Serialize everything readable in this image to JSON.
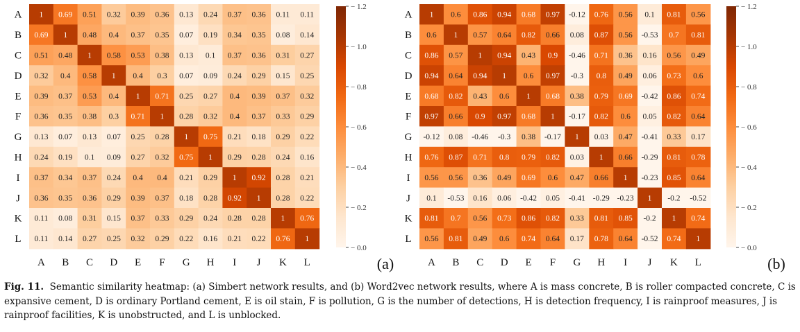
{
  "labels": [
    "A",
    "B",
    "C",
    "D",
    "E",
    "F",
    "G",
    "H",
    "I",
    "J",
    "K",
    "L"
  ],
  "chart_data": [
    {
      "type": "heatmap",
      "panel_label": "(a)",
      "rows": [
        "A",
        "B",
        "C",
        "D",
        "E",
        "F",
        "G",
        "H",
        "I",
        "J",
        "K",
        "L"
      ],
      "columns": [
        "A",
        "B",
        "C",
        "D",
        "E",
        "F",
        "G",
        "H",
        "I",
        "J",
        "K",
        "L"
      ],
      "values": [
        [
          1,
          0.69,
          0.51,
          0.32,
          0.39,
          0.36,
          0.13,
          0.24,
          0.37,
          0.36,
          0.11,
          0.11
        ],
        [
          0.69,
          1,
          0.48,
          0.4,
          0.37,
          0.35,
          0.07,
          0.19,
          0.34,
          0.35,
          0.08,
          0.14
        ],
        [
          0.51,
          0.48,
          1,
          0.58,
          0.53,
          0.38,
          0.13,
          0.1,
          0.37,
          0.36,
          0.31,
          0.27
        ],
        [
          0.32,
          0.4,
          0.58,
          1,
          0.4,
          0.3,
          0.07,
          0.09,
          0.24,
          0.29,
          0.15,
          0.25
        ],
        [
          0.39,
          0.37,
          0.53,
          0.4,
          1,
          0.71,
          0.25,
          0.27,
          0.4,
          0.39,
          0.37,
          0.32
        ],
        [
          0.36,
          0.35,
          0.38,
          0.3,
          0.71,
          1,
          0.28,
          0.32,
          0.4,
          0.37,
          0.33,
          0.29
        ],
        [
          0.13,
          0.07,
          0.13,
          0.07,
          0.25,
          0.28,
          1,
          0.75,
          0.21,
          0.18,
          0.29,
          0.22
        ],
        [
          0.24,
          0.19,
          0.1,
          0.09,
          0.27,
          0.32,
          0.75,
          1,
          0.29,
          0.28,
          0.24,
          0.16
        ],
        [
          0.37,
          0.34,
          0.37,
          0.24,
          0.4,
          0.4,
          0.21,
          0.29,
          1,
          0.92,
          0.28,
          0.21
        ],
        [
          0.36,
          0.35,
          0.36,
          0.29,
          0.39,
          0.37,
          0.18,
          0.28,
          0.92,
          1,
          0.28,
          0.22
        ],
        [
          0.11,
          0.08,
          0.31,
          0.15,
          0.37,
          0.33,
          0.29,
          0.24,
          0.28,
          0.28,
          1,
          0.76
        ],
        [
          0.11,
          0.14,
          0.27,
          0.25,
          0.32,
          0.29,
          0.22,
          0.16,
          0.21,
          0.22,
          0.76,
          1
        ]
      ],
      "colorbar": {
        "min": 0,
        "max": 1.2,
        "ticks": [
          "0.0",
          "0.2",
          "0.4",
          "0.6",
          "0.8",
          "1.0",
          "1.2"
        ]
      }
    },
    {
      "type": "heatmap",
      "panel_label": "(b)",
      "rows": [
        "A",
        "B",
        "C",
        "D",
        "E",
        "F",
        "G",
        "H",
        "I",
        "J",
        "K",
        "L"
      ],
      "columns": [
        "A",
        "B",
        "C",
        "D",
        "E",
        "F",
        "G",
        "H",
        "I",
        "J",
        "K",
        "L"
      ],
      "values": [
        [
          1,
          0.6,
          0.86,
          0.94,
          0.68,
          0.97,
          -0.12,
          0.76,
          0.56,
          0.1,
          0.81,
          0.56
        ],
        [
          0.6,
          1,
          0.57,
          0.64,
          0.82,
          0.66,
          0.08,
          0.87,
          0.56,
          -0.53,
          0.7,
          0.81
        ],
        [
          0.86,
          0.57,
          1,
          0.94,
          0.43,
          0.9,
          -0.46,
          0.71,
          0.36,
          0.16,
          0.56,
          0.49
        ],
        [
          0.94,
          0.64,
          0.94,
          1,
          0.6,
          0.97,
          -0.3,
          0.8,
          0.49,
          0.06,
          0.73,
          0.6
        ],
        [
          0.68,
          0.82,
          0.43,
          0.6,
          1,
          0.68,
          0.38,
          0.79,
          0.69,
          -0.42,
          0.86,
          0.74
        ],
        [
          0.97,
          0.66,
          0.9,
          0.97,
          0.68,
          1,
          -0.17,
          0.82,
          0.6,
          0.05,
          0.82,
          0.64
        ],
        [
          -0.12,
          0.08,
          -0.46,
          -0.3,
          0.38,
          -0.17,
          1,
          0.03,
          0.47,
          -0.41,
          0.33,
          0.17
        ],
        [
          0.76,
          0.87,
          0.71,
          0.8,
          0.79,
          0.82,
          0.03,
          1,
          0.66,
          -0.29,
          0.81,
          0.78
        ],
        [
          0.56,
          0.56,
          0.36,
          0.49,
          0.69,
          0.6,
          0.47,
          0.66,
          1,
          -0.23,
          0.85,
          0.64
        ],
        [
          0.1,
          -0.53,
          0.16,
          0.06,
          -0.42,
          0.05,
          -0.41,
          -0.29,
          -0.23,
          1,
          -0.2,
          -0.52
        ],
        [
          0.81,
          0.7,
          0.56,
          0.73,
          0.86,
          0.82,
          0.33,
          0.81,
          0.85,
          -0.2,
          1,
          0.74
        ],
        [
          0.56,
          0.81,
          0.49,
          0.6,
          0.74,
          0.64,
          0.17,
          0.78,
          0.64,
          -0.52,
          0.74,
          1
        ]
      ],
      "colorbar": {
        "min": 0,
        "max": 1.2,
        "ticks": [
          "0.0",
          "0.2",
          "0.4",
          "0.6",
          "0.8",
          "1.0",
          "1.2"
        ]
      }
    }
  ],
  "colors": {
    "scale": [
      "#fff5eb",
      "#fee6ce",
      "#fdd0a2",
      "#fdae6b",
      "#fd8d3c",
      "#f16913",
      "#d94801",
      "#a63603",
      "#7f2704"
    ]
  },
  "caption": {
    "prefix": "Fig. 11.",
    "text": "Semantic similarity heatmap: (a) Simbert network results, and (b) Word2vec network results, where A is mass concrete, B is roller compacted concrete, C is expansive cement, D is ordinary Portland cement, E is oil stain, F is pollution, G is the number of detections, H is detection frequency, I is rainproof measures, J is rainproof facilities, K is unobstructed, and L is unblocked."
  }
}
